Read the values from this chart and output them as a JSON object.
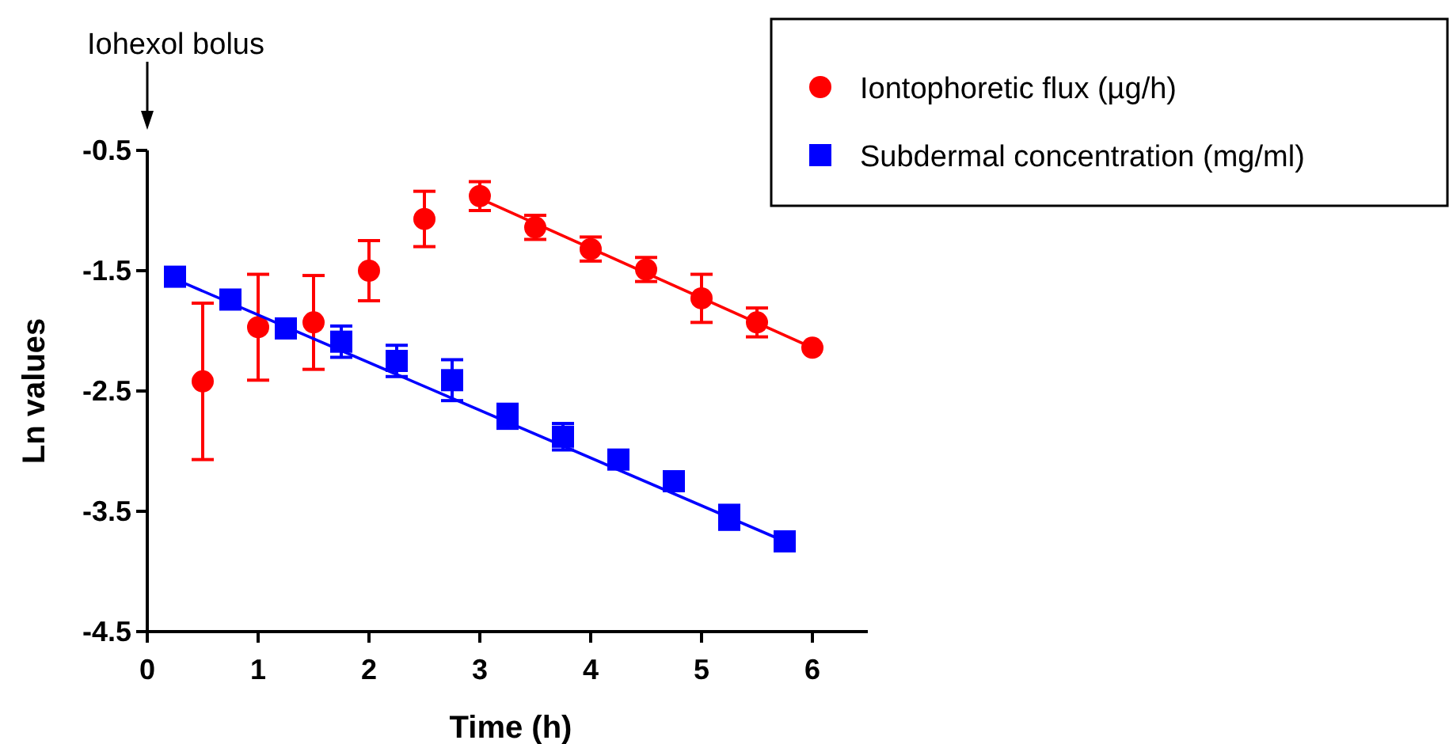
{
  "chart_data": {
    "type": "scatter",
    "xlabel": "Time (h)",
    "ylabel": "Ln values",
    "xlim": [
      0,
      6.5
    ],
    "xticks": [
      0,
      1,
      2,
      3,
      4,
      5,
      6
    ],
    "ylim": [
      -4.5,
      -0.5
    ],
    "yticks": [
      -0.5,
      -1.5,
      -2.5,
      -3.5,
      -4.5
    ],
    "grid": false,
    "legend": "top right",
    "annotations": [
      "Iohexol bolus"
    ],
    "series": [
      {
        "name": "Iontophoretic flux (µg/h)",
        "color": "#ff0000",
        "marker": "circle",
        "x": [
          0.5,
          1,
          1.5,
          2,
          2.5,
          3,
          3.5,
          4,
          4.5,
          5,
          5.5,
          6
        ],
        "values": [
          -2.42,
          -1.97,
          -1.93,
          -1.5,
          -1.07,
          -0.88,
          -1.14,
          -1.32,
          -1.49,
          -1.73,
          -1.93,
          -2.14
        ],
        "errors": [
          0.65,
          0.44,
          0.39,
          0.25,
          0.23,
          0.12,
          0.1,
          0.1,
          0.1,
          0.2,
          0.12,
          null
        ]
      },
      {
        "name": "Subdermal concentration (mg/ml)",
        "color": "#0000ff",
        "marker": "square",
        "x": [
          0.25,
          0.75,
          1.25,
          1.75,
          2.25,
          2.75,
          3.25,
          3.75,
          4.25,
          4.75,
          5.25,
          5.75
        ],
        "values": [
          -1.55,
          -1.74,
          -1.98,
          -2.09,
          -2.25,
          -2.41,
          -2.71,
          -2.88,
          -3.07,
          -3.25,
          -3.55,
          -3.75
        ],
        "errors": [
          null,
          0.05,
          0.05,
          0.13,
          0.13,
          0.17,
          0.1,
          0.11,
          null,
          null,
          0.1,
          null
        ]
      },
      {
        "type": "line",
        "color": "#ff0000",
        "x": [
          3,
          6
        ],
        "values": [
          -0.9,
          -2.14
        ]
      },
      {
        "type": "line",
        "color": "#0000ff",
        "x": [
          0.25,
          5.75
        ],
        "values": [
          -1.57,
          -3.75
        ]
      }
    ]
  }
}
